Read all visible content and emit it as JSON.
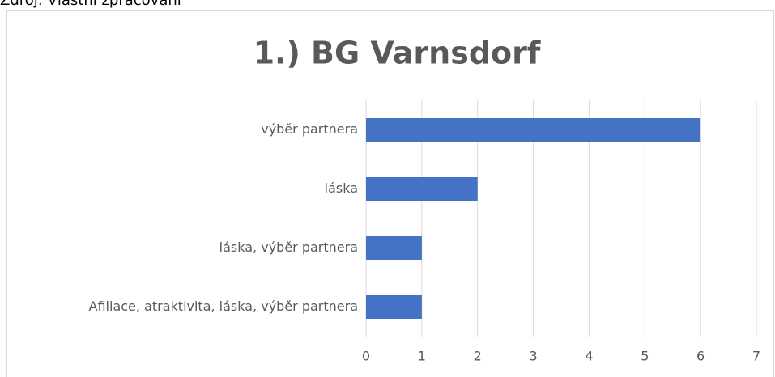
{
  "caption": "Zdroj: Vlastní zpracování",
  "chart_data": {
    "type": "bar",
    "orientation": "horizontal",
    "title": "1.) BG Varnsdorf",
    "categories": [
      "výběr partnera",
      "láska",
      "láska, výběr partnera",
      "Afiliace, atraktivita, láska, výběr partnera"
    ],
    "values": [
      6,
      2,
      1,
      1
    ],
    "color": "#4472c4",
    "xlim": [
      0,
      7
    ],
    "xticks": [
      0,
      1,
      2,
      3,
      4,
      5,
      6,
      7
    ],
    "grid": true
  }
}
